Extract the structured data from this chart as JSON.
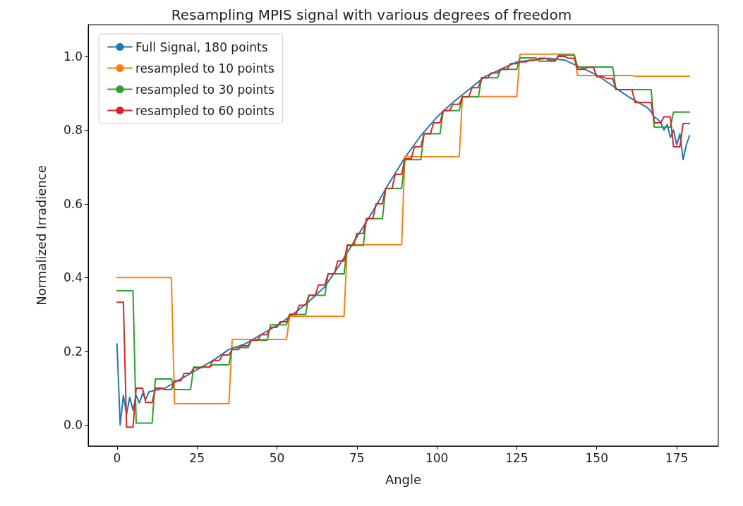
{
  "chart_data": {
    "type": "line",
    "title": "Resampling MPIS signal with various degrees of freedom",
    "xlabel": "Angle",
    "ylabel": "Normalized Irradience",
    "xlim": [
      -9,
      188
    ],
    "ylim": [
      -0.057,
      1.086
    ],
    "xticks": [
      0,
      25,
      50,
      75,
      100,
      125,
      150,
      175
    ],
    "yticks": [
      {
        "value": 0,
        "label": "0.0"
      },
      {
        "value": 0.2,
        "label": "0.2"
      },
      {
        "value": 0.4,
        "label": "0.4"
      },
      {
        "value": 0.6,
        "label": "0.6"
      },
      {
        "value": 0.8,
        "label": "0.8"
      },
      {
        "value": 1,
        "label": "1.0"
      }
    ],
    "grid": false,
    "legend": "top left",
    "marker": "none",
    "line_style": "solid",
    "series": [
      {
        "name": "Full Signal, 180 points",
        "color": "#1f77b4",
        "x": [
          0,
          1,
          2,
          3,
          4,
          5,
          6,
          7,
          8,
          9,
          10,
          15,
          20,
          25,
          30,
          35,
          40,
          45,
          50,
          55,
          60,
          65,
          70,
          75,
          80,
          85,
          90,
          95,
          100,
          105,
          110,
          115,
          120,
          125,
          130,
          135,
          140,
          145,
          150,
          155,
          160,
          165,
          166,
          167,
          168,
          169,
          170,
          171,
          172,
          173,
          174,
          175,
          176,
          177,
          178,
          179
        ],
        "values": [
          0.22,
          0.0,
          0.08,
          0.03,
          0.075,
          0.04,
          0.08,
          0.06,
          0.085,
          0.07,
          0.09,
          0.1,
          0.125,
          0.15,
          0.175,
          0.205,
          0.22,
          0.245,
          0.27,
          0.3,
          0.335,
          0.375,
          0.44,
          0.51,
          0.58,
          0.655,
          0.725,
          0.785,
          0.835,
          0.875,
          0.91,
          0.945,
          0.965,
          0.985,
          0.99,
          0.995,
          0.99,
          0.97,
          0.95,
          0.92,
          0.89,
          0.865,
          0.86,
          0.85,
          0.835,
          0.83,
          0.82,
          0.8,
          0.815,
          0.78,
          0.8,
          0.76,
          0.79,
          0.72,
          0.76,
          0.785
        ]
      },
      {
        "name": "resampled to 10 points",
        "color": "#ff7f0e",
        "x": [
          0,
          17,
          18,
          35,
          36,
          53,
          54,
          71,
          72,
          89,
          90,
          107,
          108,
          125,
          126,
          143,
          144,
          161,
          162,
          179
        ],
        "values": [
          0.4,
          0.4,
          0.058,
          0.058,
          0.232,
          0.232,
          0.295,
          0.295,
          0.489,
          0.489,
          0.728,
          0.728,
          0.891,
          0.891,
          1.006,
          1.006,
          0.948,
          0.948,
          0.946,
          0.946
        ]
      },
      {
        "name": "resampled to 30 points",
        "color": "#2ca02c",
        "x": [
          0,
          5,
          6,
          11,
          12,
          17,
          18,
          23,
          24,
          29,
          30,
          35,
          36,
          41,
          42,
          47,
          48,
          53,
          54,
          59,
          60,
          65,
          66,
          71,
          72,
          77,
          78,
          83,
          84,
          89,
          90,
          95,
          96,
          101,
          102,
          107,
          108,
          113,
          114,
          119,
          120,
          125,
          126,
          131,
          132,
          137,
          138,
          143,
          144,
          149,
          150,
          155,
          156,
          161,
          162,
          167,
          168,
          173,
          174,
          179
        ],
        "values": [
          0.364,
          0.364,
          0.005,
          0.005,
          0.125,
          0.125,
          0.096,
          0.096,
          0.157,
          0.157,
          0.163,
          0.163,
          0.21,
          0.21,
          0.23,
          0.23,
          0.272,
          0.272,
          0.3,
          0.3,
          0.352,
          0.352,
          0.41,
          0.41,
          0.487,
          0.487,
          0.56,
          0.56,
          0.642,
          0.642,
          0.72,
          0.72,
          0.79,
          0.79,
          0.853,
          0.853,
          0.89,
          0.89,
          0.942,
          0.942,
          0.965,
          0.965,
          0.996,
          0.996,
          0.987,
          0.987,
          1.003,
          1.003,
          0.971,
          0.971,
          0.971,
          0.971,
          0.91,
          0.91,
          0.91,
          0.91,
          0.808,
          0.808,
          0.849,
          0.849
        ]
      },
      {
        "name": "resampled to 60 points",
        "color": "#d62728",
        "x": [
          0,
          2,
          3,
          5,
          6,
          8,
          9,
          11,
          12,
          14,
          15,
          17,
          18,
          20,
          21,
          23,
          24,
          26,
          27,
          29,
          30,
          32,
          33,
          35,
          36,
          38,
          39,
          41,
          42,
          44,
          45,
          47,
          48,
          50,
          51,
          53,
          54,
          56,
          57,
          59,
          60,
          62,
          63,
          65,
          66,
          68,
          69,
          71,
          72,
          74,
          75,
          77,
          78,
          80,
          81,
          83,
          84,
          86,
          87,
          89,
          90,
          92,
          93,
          95,
          96,
          98,
          99,
          101,
          102,
          104,
          105,
          107,
          108,
          110,
          111,
          113,
          114,
          116,
          117,
          119,
          120,
          122,
          123,
          125,
          126,
          128,
          129,
          131,
          132,
          134,
          135,
          137,
          138,
          140,
          141,
          143,
          144,
          146,
          147,
          149,
          150,
          152,
          153,
          155,
          156,
          158,
          159,
          161,
          162,
          164,
          165,
          167,
          168,
          170,
          171,
          173,
          174,
          176,
          177,
          179
        ],
        "values": [
          0.333,
          0.333,
          -0.006,
          -0.006,
          0.1,
          0.1,
          0.061,
          0.061,
          0.1,
          0.1,
          0.096,
          0.096,
          0.12,
          0.12,
          0.14,
          0.14,
          0.155,
          0.155,
          0.158,
          0.158,
          0.175,
          0.175,
          0.19,
          0.19,
          0.205,
          0.205,
          0.215,
          0.215,
          0.23,
          0.23,
          0.245,
          0.245,
          0.265,
          0.265,
          0.28,
          0.28,
          0.3,
          0.3,
          0.325,
          0.325,
          0.352,
          0.352,
          0.38,
          0.38,
          0.41,
          0.41,
          0.445,
          0.445,
          0.487,
          0.487,
          0.52,
          0.52,
          0.56,
          0.56,
          0.6,
          0.6,
          0.642,
          0.642,
          0.68,
          0.68,
          0.722,
          0.722,
          0.755,
          0.755,
          0.79,
          0.79,
          0.82,
          0.82,
          0.853,
          0.853,
          0.87,
          0.87,
          0.89,
          0.89,
          0.915,
          0.915,
          0.942,
          0.942,
          0.955,
          0.955,
          0.965,
          0.965,
          0.98,
          0.98,
          0.985,
          0.985,
          0.99,
          0.99,
          0.995,
          0.995,
          0.99,
          0.99,
          1.0,
          1.0,
          0.995,
          0.995,
          0.965,
          0.965,
          0.97,
          0.97,
          0.945,
          0.945,
          0.94,
          0.94,
          0.91,
          0.91,
          0.91,
          0.91,
          0.875,
          0.875,
          0.875,
          0.875,
          0.82,
          0.82,
          0.836,
          0.836,
          0.755,
          0.755,
          0.818,
          0.818
        ]
      }
    ]
  }
}
